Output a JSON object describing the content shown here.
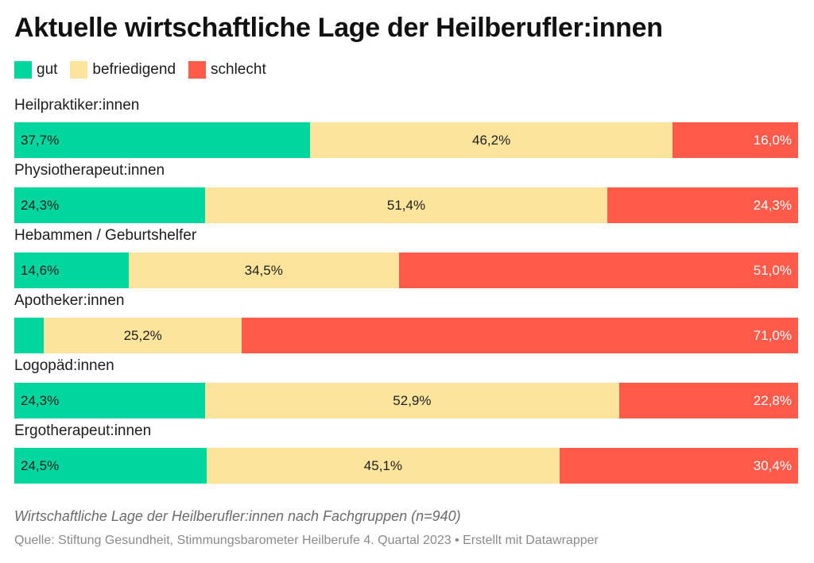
{
  "title": "Aktuelle wirtschaftliche Lage der Heilberufler:innen",
  "legend": [
    {
      "label": "gut",
      "color": "#00d69e"
    },
    {
      "label": "befriedigend",
      "color": "#fde49c"
    },
    {
      "label": "schlecht",
      "color": "#ff5a4a"
    }
  ],
  "chart_data": {
    "type": "bar",
    "orientation": "horizontal",
    "stacked": true,
    "percent_stacked": true,
    "categories": [
      "Heilpraktiker:innen",
      "Physiotherapeut:innen",
      "Hebammen / Geburtshelfer",
      "Apotheker:innen",
      "Logopäd:innen",
      "Ergotherapeut:innen"
    ],
    "series": [
      {
        "name": "gut",
        "color": "#00d69e",
        "values": [
          37.7,
          24.3,
          14.6,
          3.8,
          24.3,
          24.5
        ],
        "labels": [
          "37,7%",
          "24,3%",
          "14,6%",
          "",
          "24,3%",
          "24,5%"
        ]
      },
      {
        "name": "befriedigend",
        "color": "#fde49c",
        "values": [
          46.2,
          51.4,
          34.5,
          25.2,
          52.9,
          45.1
        ],
        "labels": [
          "46,2%",
          "51,4%",
          "34,5%",
          "25,2%",
          "52,9%",
          "45,1%"
        ]
      },
      {
        "name": "schlecht",
        "color": "#ff5a4a",
        "values": [
          16.0,
          24.3,
          51.0,
          71.0,
          22.8,
          30.4
        ],
        "labels": [
          "16,0%",
          "24,3%",
          "51,0%",
          "71,0%",
          "22,8%",
          "30,4%"
        ]
      }
    ],
    "xlim": [
      0,
      100
    ],
    "legend_position": "top-left",
    "grid": false
  },
  "caption": "Wirtschaftliche Lage der Heilberufler:innen nach Fachgruppen (n=940)",
  "source": "Quelle: Stiftung Gesundheit, Stimmungsbarometer Heilberufe 4. Quartal 2023 • Erstellt mit Datawrapper"
}
